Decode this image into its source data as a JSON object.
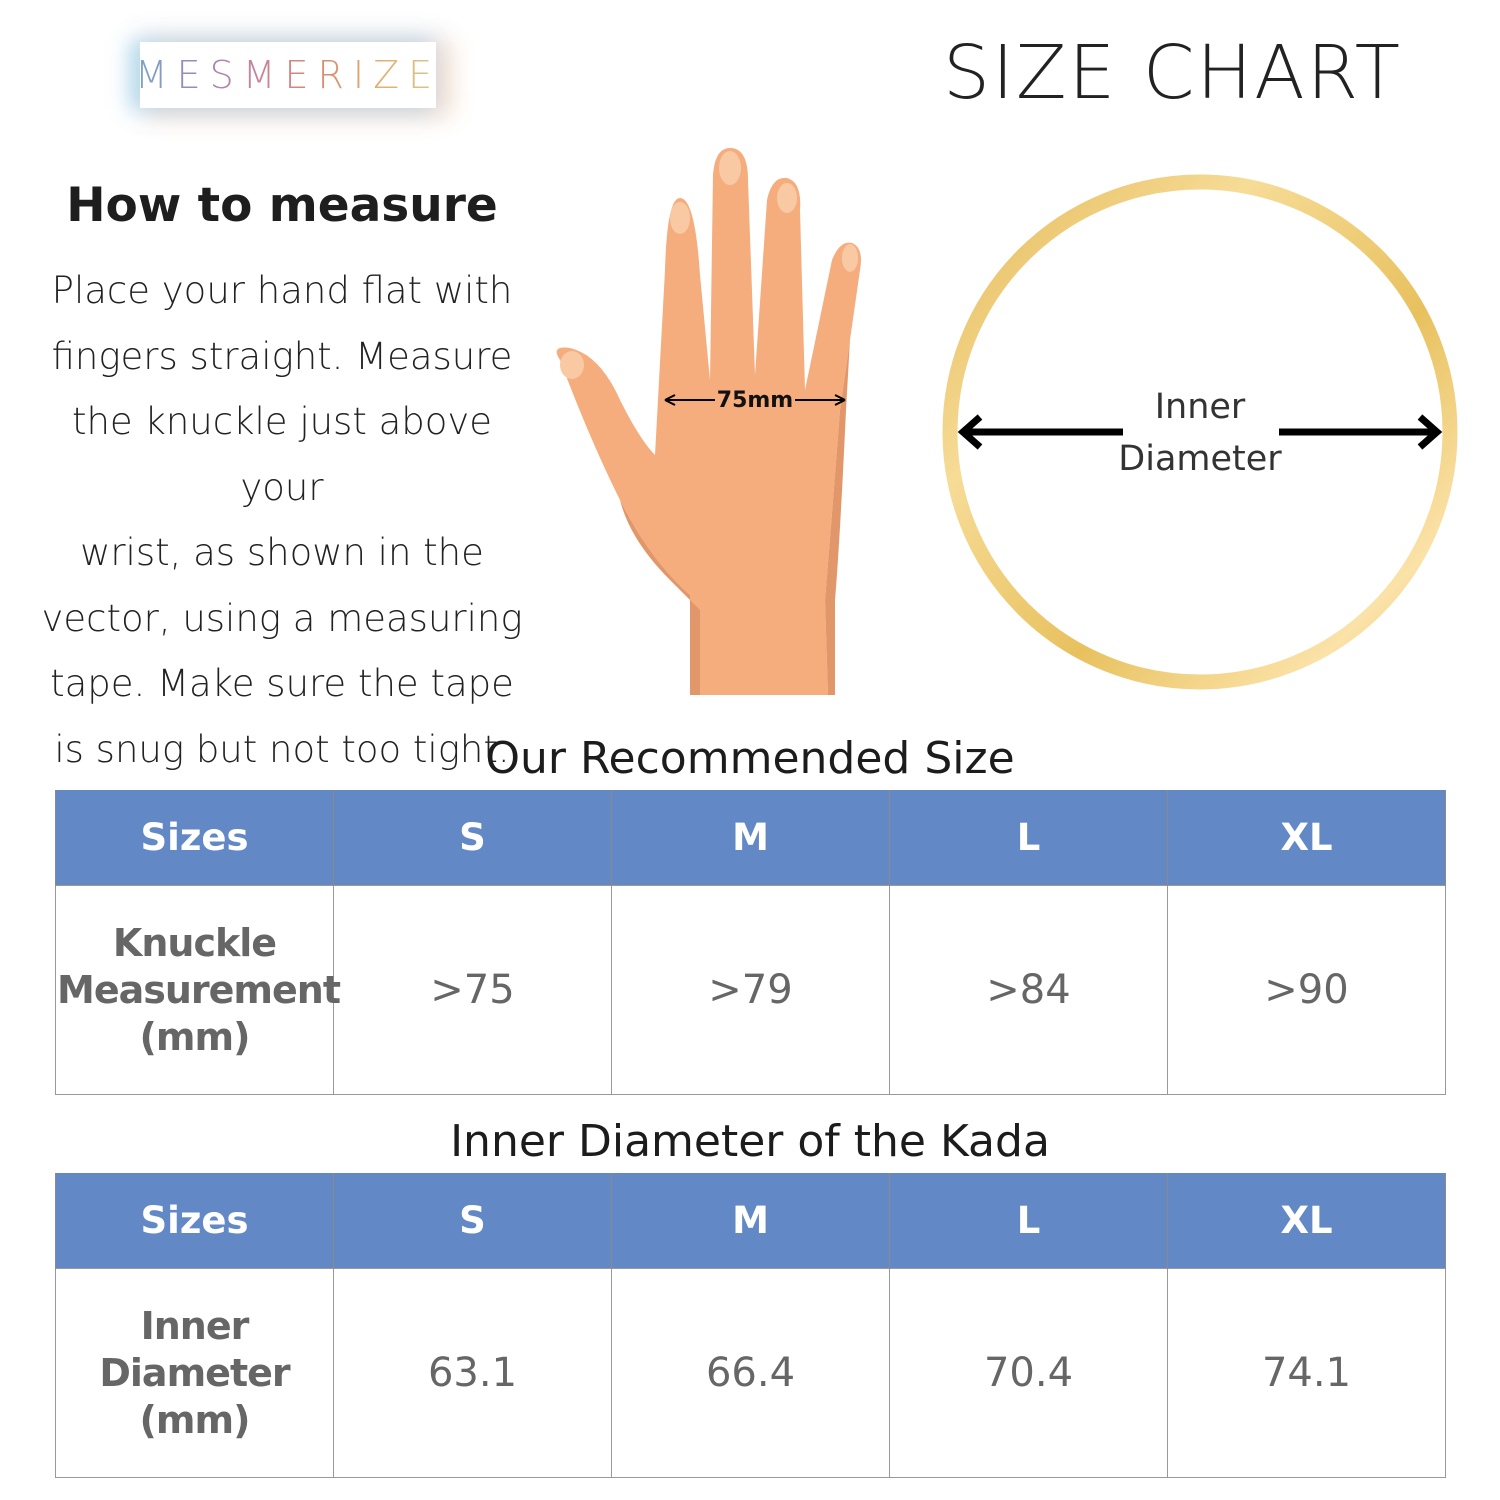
{
  "logo": {
    "text": "MESMERIZE"
  },
  "title": "SIZE CHART",
  "how_to_measure": {
    "title": "How to measure",
    "lines": [
      "Place your hand flat with",
      "fingers straight. Measure",
      "the knuckle just above your",
      "wrist, as shown in the",
      "vector, using a measuring",
      "tape. Make sure the tape",
      "is snug but not too tight."
    ]
  },
  "hand_diagram": {
    "label": "75mm",
    "skin_color": "#f5ad7d"
  },
  "ring_diagram": {
    "label_line1": "Inner",
    "label_line2": "Diameter",
    "ring_color": "#e8c15e"
  },
  "recommended": {
    "title": "Our Recommended Size",
    "headers": [
      "Sizes",
      "S",
      "M",
      "L",
      "XL"
    ],
    "row_label": [
      "Knuckle",
      "Measurement",
      "(mm)"
    ],
    "values": [
      ">75",
      ">79",
      ">84",
      ">90"
    ]
  },
  "kada": {
    "title": "Inner Diameter of the Kada",
    "headers": [
      "Sizes",
      "S",
      "M",
      "L",
      "XL"
    ],
    "row_label": [
      "Inner",
      "Diameter",
      "(mm)"
    ],
    "values": [
      "63.1",
      "66.4",
      "70.4",
      "74.1"
    ]
  },
  "colors": {
    "header_bg": "#6289c6",
    "cell_text": "#666666"
  }
}
